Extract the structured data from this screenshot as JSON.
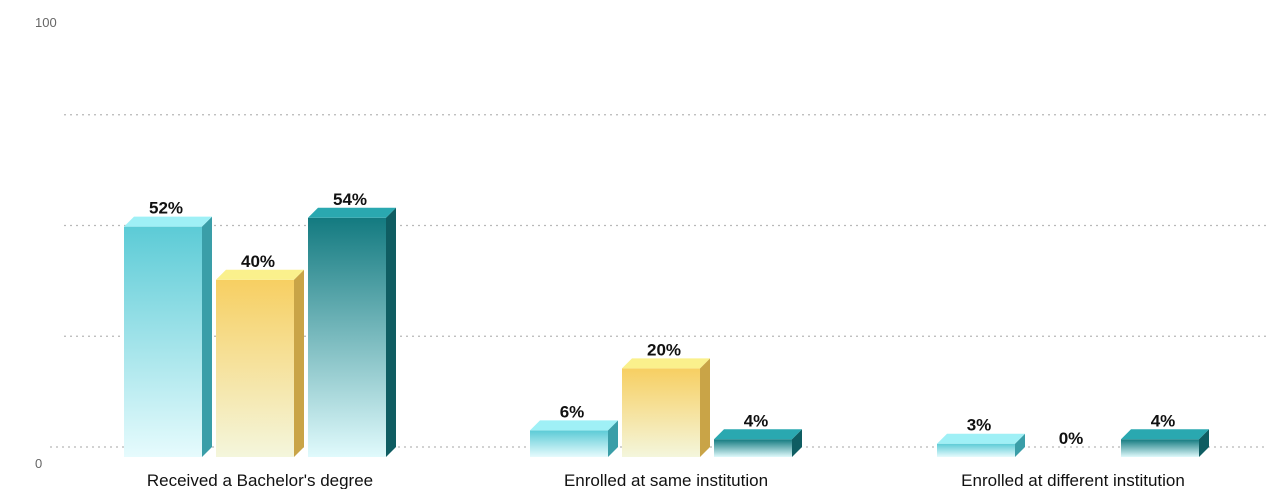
{
  "chart_data": {
    "type": "bar",
    "categories": [
      "Received a Bachelor's degree",
      "Enrolled at same institution",
      "Enrolled at different institution"
    ],
    "series": [
      {
        "values": [
          52,
          6,
          3
        ],
        "labels": [
          "52%",
          "6%",
          "3%"
        ]
      },
      {
        "values": [
          40,
          20,
          0
        ],
        "labels": [
          "40%",
          "20%",
          "0%"
        ]
      },
      {
        "values": [
          54,
          4,
          4
        ],
        "labels": [
          "54%",
          "4%",
          "4%"
        ]
      }
    ],
    "ylim": [
      0,
      100
    ],
    "yticks": [
      "0",
      "100"
    ],
    "gridlines": [
      0,
      25,
      50,
      75
    ],
    "colors": {
      "series": [
        {
          "top": "#5ccbd6",
          "bottom": "#e6fbfd",
          "side": "#3a9ea8",
          "cap": "#9ff0f6"
        },
        {
          "top": "#f7cf62",
          "bottom": "#f4f6dc",
          "side": "#c9a447",
          "cap": "#faf08c"
        },
        {
          "top": "#137a80",
          "bottom": "#e0fafc",
          "side": "#0f5d62",
          "cap": "#2aa8b0"
        }
      ]
    }
  }
}
